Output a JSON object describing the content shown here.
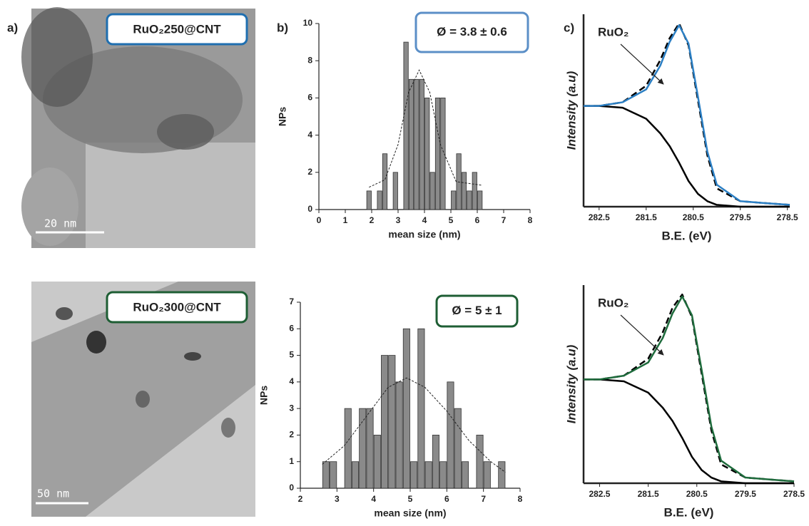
{
  "panel_labels": [
    "a)",
    "b)",
    "c)"
  ],
  "images": [
    {
      "label": "RuO₂250@CNT",
      "scale_bar": "20 nm",
      "label_color": "#1f6fb0"
    },
    {
      "label": "RuO₂300@CNT",
      "scale_bar": "50 nm",
      "label_color": "#1e5e34"
    }
  ],
  "chart_data": [
    {
      "type": "histogram",
      "annotation": "Ø = 3.8 ± 0.6",
      "annotation_color": "#5b8fc7",
      "xlabel": "mean size (nm)",
      "ylabel": "NPs",
      "bins": [
        1.8,
        2.0,
        2.2,
        2.4,
        2.6,
        2.8,
        3.0,
        3.2,
        3.4,
        3.6,
        3.8,
        4.0,
        4.2,
        4.4,
        4.6,
        4.8,
        5.0,
        5.2,
        5.4,
        5.6,
        5.8,
        6.0,
        6.2
      ],
      "counts": [
        1,
        0,
        1,
        3,
        0,
        2,
        0,
        9,
        7,
        7,
        7,
        6,
        2,
        6,
        6,
        0,
        1,
        3,
        2,
        1,
        2,
        1
      ],
      "color": "#8a8a8a",
      "fit": {
        "x": [
          1.9,
          2.5,
          3.0,
          3.4,
          3.8,
          4.2,
          4.6,
          5.2,
          6.2
        ],
        "y": [
          1.2,
          1.6,
          3.5,
          6.3,
          7.5,
          6.3,
          3.5,
          1.5,
          1.3
        ]
      },
      "xlim": [
        0,
        8
      ],
      "xticks": [
        0,
        1,
        2,
        3,
        4,
        5,
        6,
        7,
        8
      ],
      "ylim": [
        0,
        10
      ],
      "yticks": [
        0,
        2,
        4,
        6,
        8,
        10
      ]
    },
    {
      "type": "histogram",
      "annotation": "Ø = 5 ± 1",
      "annotation_color": "#1e5e34",
      "xlabel": "mean size (nm)",
      "ylabel": "NPs",
      "bins": [
        2.6,
        2.8,
        3.0,
        3.2,
        3.4,
        3.6,
        3.8,
        4.0,
        4.2,
        4.4,
        4.6,
        4.8,
        5.0,
        5.2,
        5.4,
        5.6,
        5.8,
        6.0,
        6.2,
        6.4,
        6.6,
        6.8,
        7.0,
        7.2,
        7.4,
        7.6
      ],
      "counts": [
        1,
        1,
        0,
        3,
        1,
        3,
        3,
        2,
        5,
        5,
        4,
        6,
        1,
        6,
        1,
        2,
        1,
        4,
        3,
        1,
        0,
        2,
        1,
        0,
        1
      ],
      "color": "#8a8a8a",
      "fit": {
        "x": [
          2.6,
          3.2,
          3.8,
          4.4,
          4.9,
          5.4,
          6.0,
          6.6,
          7.2,
          7.6
        ],
        "y": [
          0.9,
          1.6,
          2.7,
          3.8,
          4.15,
          3.8,
          2.9,
          1.8,
          1.0,
          0.6
        ]
      },
      "xlim": [
        2,
        8
      ],
      "xticks": [
        2,
        3,
        4,
        5,
        6,
        7,
        8
      ],
      "ylim": [
        0,
        7
      ],
      "yticks": [
        0,
        1,
        2,
        3,
        4,
        5,
        6,
        7
      ]
    },
    {
      "type": "line",
      "annotation": "RuO₂",
      "xlabel": "B.E. (eV)",
      "ylabel": "Intensity (a.u)",
      "x": [
        282.83,
        282.5,
        282.0,
        281.5,
        281.2,
        281.0,
        280.8,
        280.6,
        280.4,
        280.2,
        280.0,
        279.5,
        279.0,
        278.45
      ],
      "series": [
        {
          "color": "#000000",
          "style": "solid",
          "values": [
            0.55,
            0.55,
            0.54,
            0.48,
            0.4,
            0.33,
            0.24,
            0.14,
            0.07,
            0.03,
            0.01,
            0.0,
            0.0,
            0.0
          ]
        },
        {
          "color": "#000000",
          "style": "dashed",
          "values": [
            0.55,
            0.55,
            0.57,
            0.66,
            0.8,
            0.92,
            1.0,
            0.88,
            0.58,
            0.28,
            0.1,
            0.03,
            0.02,
            0.01
          ]
        },
        {
          "color": "#2b7fc4",
          "style": "solid",
          "values": [
            0.55,
            0.55,
            0.57,
            0.64,
            0.77,
            0.9,
            0.99,
            0.89,
            0.6,
            0.3,
            0.12,
            0.03,
            0.02,
            0.01
          ]
        }
      ],
      "xlim": [
        282.83,
        278.45
      ],
      "xticks": [
        282.5,
        281.5,
        280.5,
        279.5,
        278.5
      ],
      "ylim": [
        0,
        1.05
      ]
    },
    {
      "type": "line",
      "annotation": "RuO₂",
      "xlabel": "B.E. (eV)",
      "ylabel": "Intensity (a.u)",
      "x": [
        282.83,
        282.5,
        282.0,
        281.5,
        281.2,
        281.0,
        280.8,
        280.6,
        280.4,
        280.2,
        280.0,
        279.5,
        279.0,
        278.5
      ],
      "series": [
        {
          "color": "#000000",
          "style": "solid",
          "values": [
            0.55,
            0.55,
            0.54,
            0.48,
            0.4,
            0.33,
            0.24,
            0.14,
            0.07,
            0.03,
            0.01,
            0.0,
            0.0,
            0.0
          ]
        },
        {
          "color": "#000000",
          "style": "dashed",
          "values": [
            0.55,
            0.55,
            0.57,
            0.66,
            0.8,
            0.93,
            1.0,
            0.88,
            0.58,
            0.28,
            0.1,
            0.03,
            0.02,
            0.01
          ]
        },
        {
          "color": "#1e6b3c",
          "style": "solid",
          "values": [
            0.55,
            0.55,
            0.57,
            0.64,
            0.77,
            0.9,
            0.99,
            0.89,
            0.6,
            0.3,
            0.12,
            0.03,
            0.02,
            0.01
          ]
        }
      ],
      "xlim": [
        282.83,
        278.5
      ],
      "xticks": [
        282.5,
        281.5,
        280.5,
        279.5,
        278.5
      ],
      "ylim": [
        0,
        1.05
      ]
    }
  ]
}
